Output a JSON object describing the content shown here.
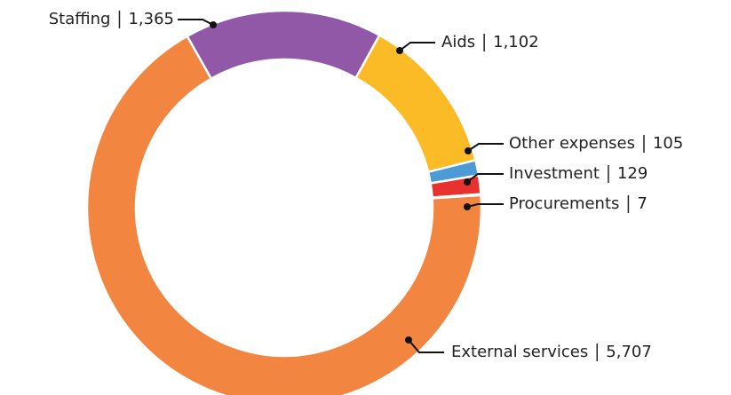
{
  "chart_data": {
    "type": "donut",
    "categories": [
      "Staffing",
      "Aids",
      "Other expenses",
      "Investment",
      "Procurements",
      "External services"
    ],
    "values": [
      1365,
      1102,
      105,
      129,
      7,
      5707
    ],
    "value_labels": [
      "1,365",
      "1,102",
      "105",
      "129",
      "7",
      "5,707"
    ],
    "colors": [
      "#9158a8",
      "#fbbb27",
      "#4c9ad6",
      "#e8322e",
      "#7dc05a",
      "#f2853f"
    ]
  }
}
